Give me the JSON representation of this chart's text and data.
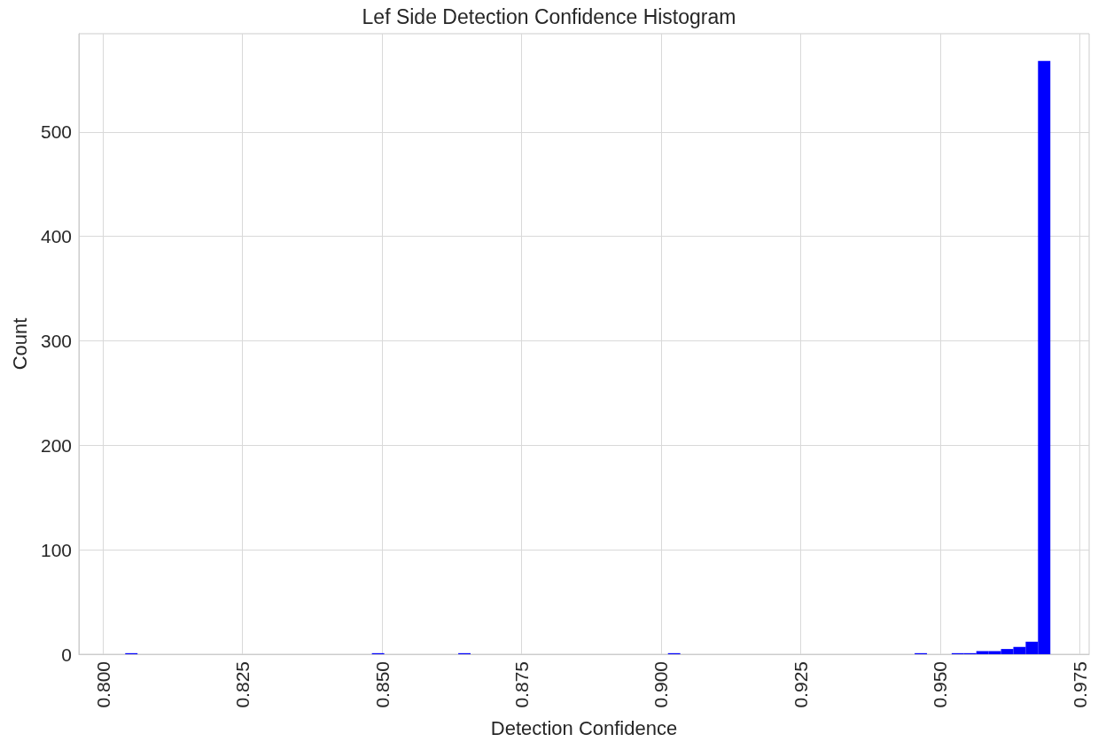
{
  "chart_data": {
    "type": "histogram",
    "title": "Lef Side Detection Confidence Histogram",
    "xlabel": "Detection Confidence",
    "ylabel": "Count",
    "color": "#0000ff",
    "bins": [
      0.804,
      0.80621,
      0.80842,
      0.81063,
      0.81284,
      0.81505,
      0.81726,
      0.81947,
      0.82168,
      0.82389,
      0.8261,
      0.82831,
      0.83052,
      0.83273,
      0.83494,
      0.83715,
      0.83936,
      0.84157,
      0.84378,
      0.84599,
      0.8482,
      0.85041,
      0.85262,
      0.85483,
      0.85704,
      0.85925,
      0.86146,
      0.86367,
      0.86588,
      0.86809,
      0.8703,
      0.87251,
      0.87472,
      0.87693,
      0.87914,
      0.88135,
      0.88356,
      0.88577,
      0.88798,
      0.89019,
      0.8924,
      0.89461,
      0.89682,
      0.89903,
      0.90124,
      0.90345,
      0.90566,
      0.90787,
      0.91008,
      0.91229,
      0.9145,
      0.91671,
      0.91892,
      0.92113,
      0.92334,
      0.92555,
      0.92776,
      0.92997,
      0.93218,
      0.93439,
      0.9366,
      0.93881,
      0.94102,
      0.94323,
      0.94544,
      0.94765,
      0.94986,
      0.95207,
      0.95428,
      0.95649,
      0.9587,
      0.96091,
      0.96312,
      0.96533,
      0.96754,
      0.96975
    ],
    "values": [
      1,
      0,
      0,
      0,
      0,
      0,
      0,
      0,
      0,
      0,
      0,
      0,
      0,
      0,
      0,
      0,
      0,
      0,
      0,
      0,
      1,
      0,
      0,
      0,
      0,
      0,
      0,
      1,
      0,
      0,
      0,
      0,
      0,
      0,
      0,
      0,
      0,
      0,
      0,
      0,
      0,
      0,
      0,
      0,
      1,
      0,
      0,
      0,
      0,
      0,
      0,
      0,
      0,
      0,
      0,
      0,
      0,
      0,
      0,
      0,
      0,
      0,
      0,
      0,
      1,
      0,
      0,
      1,
      1,
      3,
      3,
      5,
      7,
      12,
      568
    ],
    "xlim": [
      0.7957,
      0.9767
    ],
    "xticks": [
      {
        "value": 0.8,
        "label": "0.800"
      },
      {
        "value": 0.825,
        "label": "0.825"
      },
      {
        "value": 0.85,
        "label": "0.850"
      },
      {
        "value": 0.875,
        "label": "0.875"
      },
      {
        "value": 0.9,
        "label": "0.900"
      },
      {
        "value": 0.925,
        "label": "0.925"
      },
      {
        "value": 0.95,
        "label": "0.950"
      },
      {
        "value": 0.975,
        "label": "0.975"
      }
    ],
    "ylim": [
      0,
      594
    ],
    "yticks": [
      0,
      100,
      200,
      300,
      400,
      500
    ],
    "grid": true
  }
}
